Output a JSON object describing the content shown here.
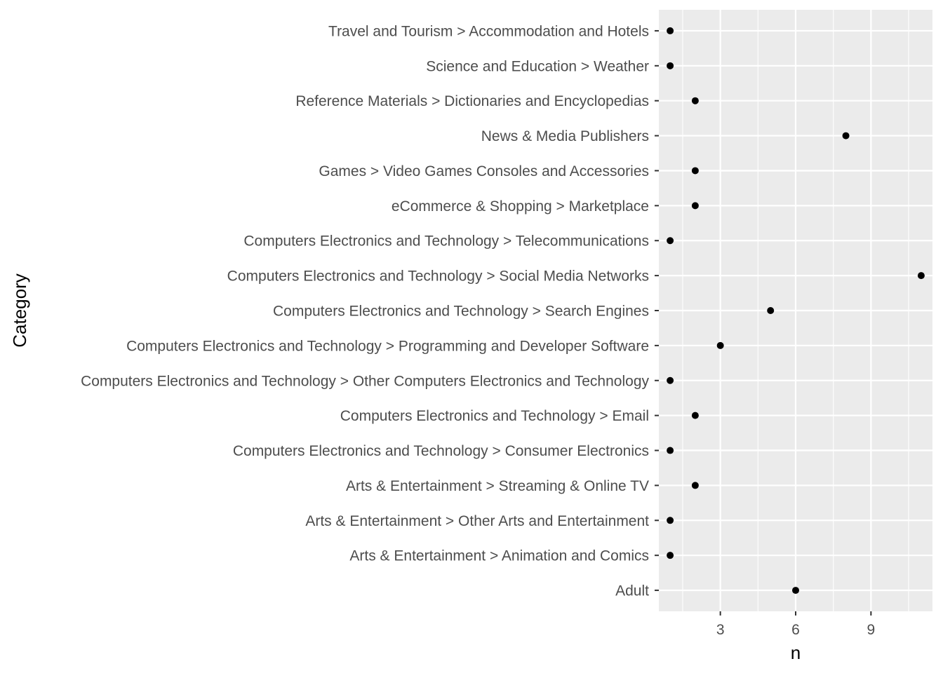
{
  "chart_data": {
    "type": "scatter",
    "orientation": "horizontal",
    "xlabel": "n",
    "ylabel": "Category",
    "xlim": [
      0.55,
      11.45
    ],
    "x_ticks": [
      3,
      6,
      9
    ],
    "x_minor_ticks": [
      1.5,
      4.5,
      7.5,
      10.5
    ],
    "grid": true,
    "colors": {
      "panel_background": "#ebebeb",
      "grid_line": "#ffffff",
      "point": "#000000",
      "tick_text": "#4d4d4d",
      "axis_title": "#000000"
    },
    "categories": [
      "Adult",
      "Arts & Entertainment > Animation and Comics",
      "Arts & Entertainment > Other Arts and Entertainment",
      "Arts & Entertainment > Streaming & Online TV",
      "Computers Electronics and Technology > Consumer Electronics",
      "Computers Electronics and Technology > Email",
      "Computers Electronics and Technology > Other Computers Electronics and Technology",
      "Computers Electronics and Technology > Programming and Developer Software",
      "Computers Electronics and Technology > Search Engines",
      "Computers Electronics and Technology > Social Media Networks",
      "Computers Electronics and Technology > Telecommunications",
      "eCommerce & Shopping > Marketplace",
      "Games > Video Games Consoles and Accessories",
      "News & Media Publishers",
      "Reference Materials > Dictionaries and Encyclopedias",
      "Science and Education > Weather",
      "Travel and Tourism > Accommodation and Hotels"
    ],
    "values": [
      6,
      1,
      1,
      2,
      1,
      2,
      1,
      3,
      5,
      11,
      1,
      2,
      2,
      8,
      2,
      1,
      1
    ]
  }
}
